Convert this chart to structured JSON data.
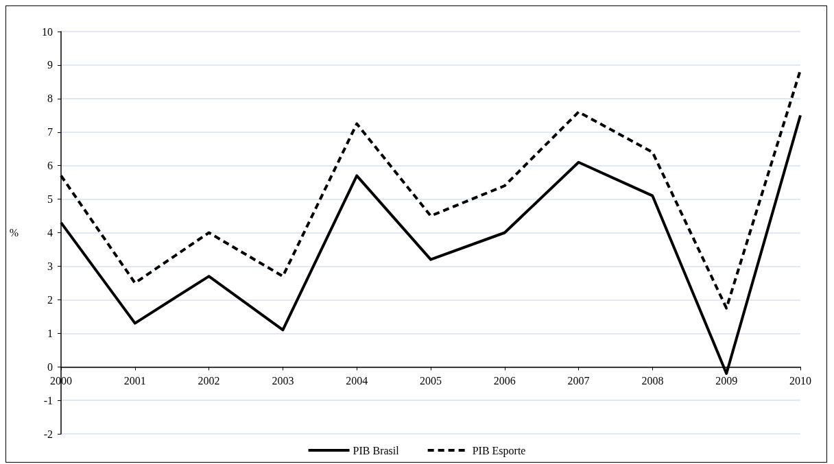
{
  "chart_data": {
    "type": "line",
    "ylabel": "%",
    "categories": [
      "2000",
      "2001",
      "2002",
      "2003",
      "2004",
      "2005",
      "2006",
      "2007",
      "2008",
      "2009",
      "2010"
    ],
    "series": [
      {
        "name": "PIB Brasil",
        "color": "#000000",
        "line_style": "solid",
        "values": [
          4.3,
          1.3,
          2.7,
          1.1,
          5.7,
          3.2,
          4.0,
          6.1,
          5.1,
          -0.2,
          7.5
        ]
      },
      {
        "name": "PIB Esporte",
        "color": "#000000",
        "line_style": "dashed",
        "values": [
          5.7,
          2.5,
          4.0,
          2.7,
          7.25,
          4.5,
          5.4,
          7.6,
          6.4,
          1.75,
          8.85
        ]
      }
    ],
    "ylim": [
      -2,
      10
    ],
    "yticks": [
      -2,
      -1,
      0,
      1,
      2,
      3,
      4,
      5,
      6,
      7,
      8,
      9,
      10
    ],
    "grid": "y",
    "legend": "bottom",
    "marker": "none"
  }
}
